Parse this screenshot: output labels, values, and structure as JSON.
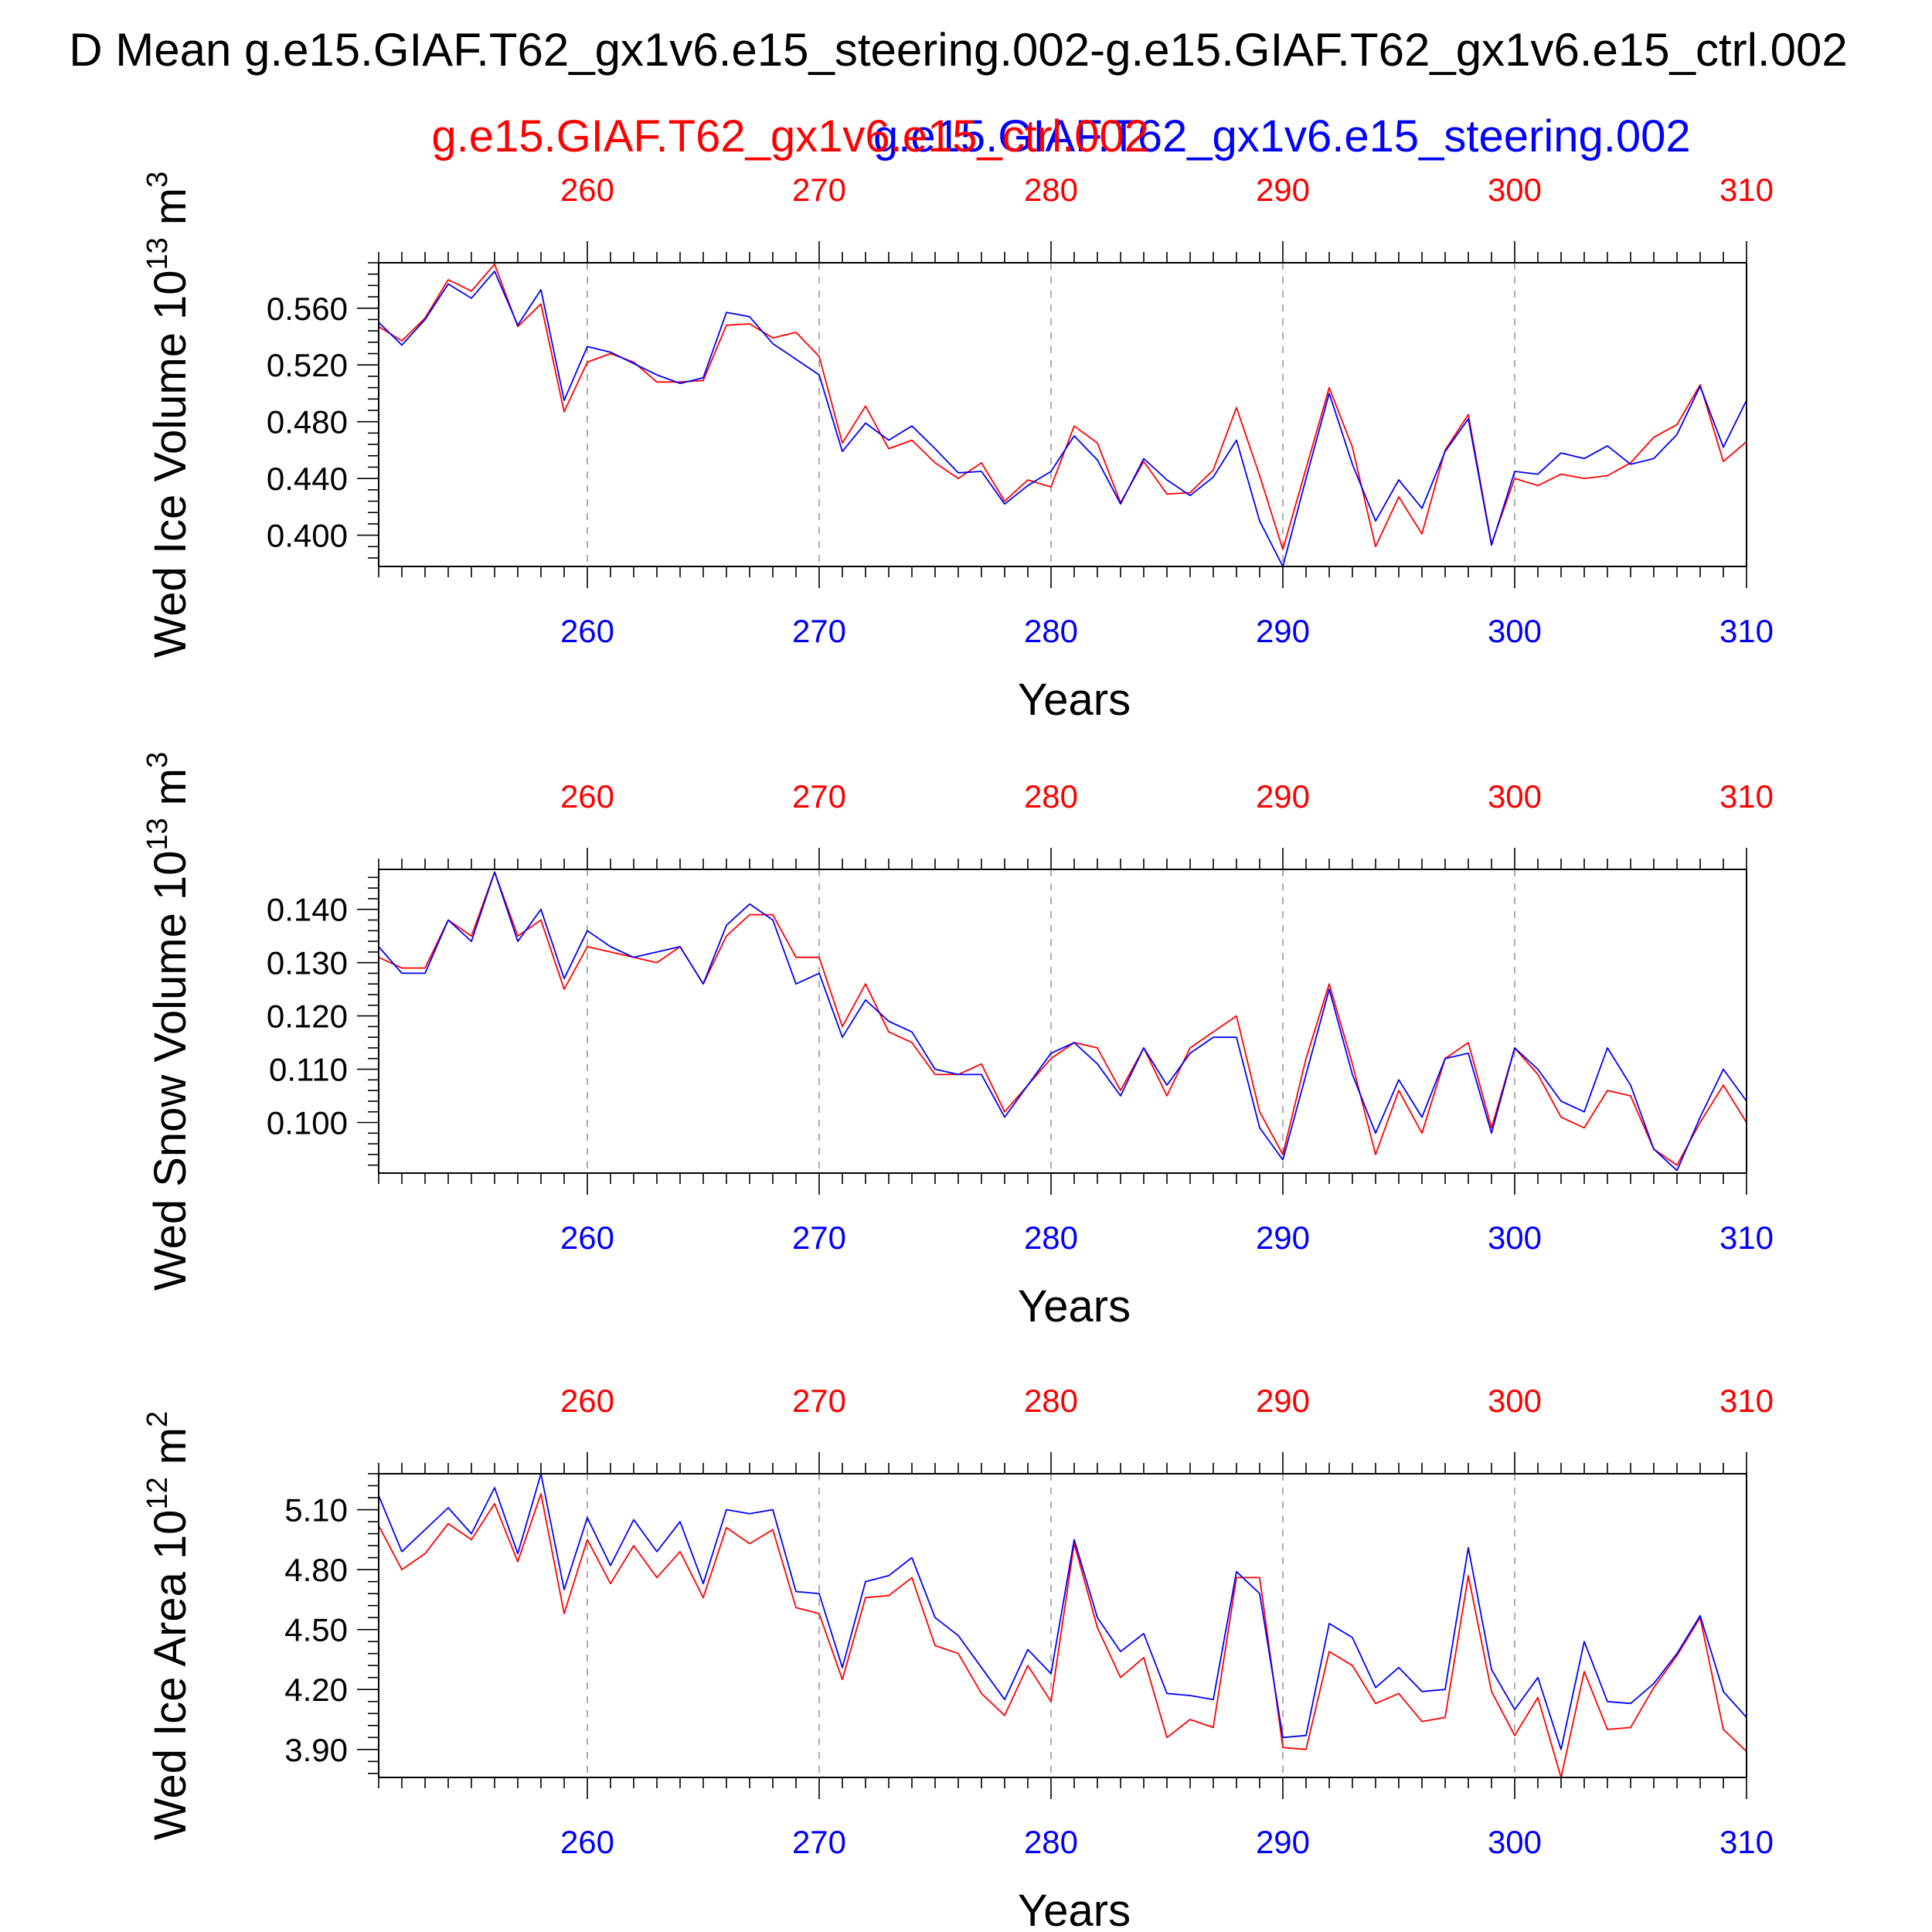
{
  "title": "D Mean g.e15.GIAF.T62_gx1v6.e15_steering.002-g.e15.GIAF.T62_gx1v6.e15_ctrl.002",
  "legend": {
    "case1": "g.e15.GIAF.T62_gx1v6.e15_ctrl.002",
    "case2": "g.e15.GIAF.T62_gx1v6.e15_steering.002"
  },
  "colors": {
    "case1": "#ff0000",
    "case2": "#0000ff",
    "axis": "#000000",
    "grid": "#999999"
  },
  "chart_data": [
    {
      "type": "line",
      "ylabel": "Wed Ice Volume",
      "yunit_base": "10",
      "yunit_exp": "13",
      "yunit_suffix": "m",
      "yunit_pow": "3",
      "xlabel": "Years",
      "xlim": [
        251,
        310
      ],
      "ylim": [
        0.378,
        0.592
      ],
      "xticks": [
        260,
        270,
        280,
        290,
        300,
        310
      ],
      "xtick_labels": [
        "260",
        "270",
        "280",
        "290",
        "300",
        "310"
      ],
      "yticks": [
        0.4,
        0.44,
        0.48,
        0.52,
        0.56
      ],
      "ytick_labels": [
        "0.400",
        "0.440",
        "0.480",
        "0.520",
        "0.560"
      ],
      "grid": "vertical dashed at major x ticks",
      "x": [
        251,
        252,
        253,
        254,
        255,
        256,
        257,
        258,
        259,
        260,
        261,
        262,
        263,
        264,
        265,
        266,
        267,
        268,
        269,
        270,
        271,
        272,
        273,
        274,
        275,
        276,
        277,
        278,
        279,
        280,
        281,
        282,
        283,
        284,
        285,
        286,
        287,
        288,
        289,
        290,
        291,
        292,
        293,
        294,
        295,
        296,
        297,
        298,
        299,
        300,
        301,
        302,
        303,
        304,
        305,
        306,
        307,
        308,
        309,
        310
      ],
      "series": [
        {
          "name": "g.e15.GIAF.T62_gx1v6.e15_ctrl.002",
          "color": "#ff0000",
          "values": [
            0.547,
            0.537,
            0.553,
            0.58,
            0.572,
            0.591,
            0.547,
            0.563,
            0.487,
            0.522,
            0.528,
            0.522,
            0.508,
            0.508,
            0.509,
            0.548,
            0.549,
            0.539,
            0.543,
            0.526,
            0.465,
            0.491,
            0.461,
            0.467,
            0.451,
            0.44,
            0.451,
            0.424,
            0.439,
            0.434,
            0.477,
            0.465,
            0.423,
            0.452,
            0.429,
            0.43,
            0.446,
            0.49,
            0.442,
            0.39,
            0.447,
            0.504,
            0.462,
            0.392,
            0.427,
            0.401,
            0.46,
            0.485,
            0.394,
            0.44,
            0.435,
            0.443,
            0.44,
            0.442,
            0.451,
            0.469,
            0.478,
            0.506,
            0.452,
            0.466
          ]
        },
        {
          "name": "g.e15.GIAF.T62_gx1v6.e15_steering.002",
          "color": "#0000ff",
          "values": [
            0.55,
            0.534,
            0.552,
            0.577,
            0.567,
            0.586,
            0.548,
            0.573,
            0.495,
            0.533,
            0.529,
            0.521,
            0.513,
            0.507,
            0.511,
            0.557,
            0.554,
            0.535,
            0.524,
            0.513,
            0.459,
            0.479,
            0.467,
            0.477,
            0.461,
            0.444,
            0.445,
            0.422,
            0.435,
            0.445,
            0.47,
            0.453,
            0.422,
            0.454,
            0.439,
            0.428,
            0.441,
            0.467,
            0.41,
            0.378,
            0.44,
            0.5,
            0.45,
            0.41,
            0.439,
            0.419,
            0.459,
            0.482,
            0.393,
            0.445,
            0.443,
            0.458,
            0.454,
            0.463,
            0.45,
            0.454,
            0.471,
            0.505,
            0.462,
            0.495
          ]
        }
      ]
    },
    {
      "type": "line",
      "ylabel": "Wed Snow Volume",
      "yunit_base": "10",
      "yunit_exp": "13",
      "yunit_suffix": "m",
      "yunit_pow": "3",
      "xlabel": "Years",
      "xlim": [
        251,
        310
      ],
      "ylim": [
        0.0905,
        0.1475
      ],
      "xticks": [
        260,
        270,
        280,
        290,
        300,
        310
      ],
      "xtick_labels": [
        "260",
        "270",
        "280",
        "290",
        "300",
        "310"
      ],
      "yticks": [
        0.1,
        0.11,
        0.12,
        0.13,
        0.14
      ],
      "ytick_labels": [
        "0.100",
        "0.110",
        "0.120",
        "0.130",
        "0.140"
      ],
      "grid": "vertical dashed at major x ticks",
      "x": [
        251,
        252,
        253,
        254,
        255,
        256,
        257,
        258,
        259,
        260,
        261,
        262,
        263,
        264,
        265,
        266,
        267,
        268,
        269,
        270,
        271,
        272,
        273,
        274,
        275,
        276,
        277,
        278,
        279,
        280,
        281,
        282,
        283,
        284,
        285,
        286,
        287,
        288,
        289,
        290,
        291,
        292,
        293,
        294,
        295,
        296,
        297,
        298,
        299,
        300,
        301,
        302,
        303,
        304,
        305,
        306,
        307,
        308,
        309,
        310
      ],
      "series": [
        {
          "name": "g.e15.GIAF.T62_gx1v6.e15_ctrl.002",
          "color": "#ff0000",
          "values": [
            0.131,
            0.129,
            0.129,
            0.138,
            0.135,
            0.147,
            0.135,
            0.138,
            0.125,
            0.133,
            0.132,
            0.131,
            0.13,
            0.133,
            0.126,
            0.135,
            0.139,
            0.139,
            0.131,
            0.131,
            0.118,
            0.126,
            0.117,
            0.115,
            0.109,
            0.109,
            0.111,
            0.102,
            0.107,
            0.112,
            0.115,
            0.114,
            0.106,
            0.114,
            0.105,
            0.114,
            0.117,
            0.12,
            0.102,
            0.094,
            0.112,
            0.126,
            0.111,
            0.094,
            0.106,
            0.098,
            0.112,
            0.115,
            0.099,
            0.114,
            0.109,
            0.101,
            0.099,
            0.106,
            0.105,
            0.095,
            0.092,
            0.1,
            0.107,
            0.1
          ]
        },
        {
          "name": "g.e15.GIAF.T62_gx1v6.e15_steering.002",
          "color": "#0000ff",
          "values": [
            0.133,
            0.128,
            0.128,
            0.138,
            0.134,
            0.147,
            0.134,
            0.14,
            0.127,
            0.136,
            0.133,
            0.131,
            0.132,
            0.133,
            0.126,
            0.137,
            0.141,
            0.138,
            0.126,
            0.128,
            0.116,
            0.123,
            0.119,
            0.117,
            0.11,
            0.109,
            0.109,
            0.101,
            0.107,
            0.113,
            0.115,
            0.111,
            0.105,
            0.114,
            0.107,
            0.113,
            0.116,
            0.116,
            0.099,
            0.093,
            0.109,
            0.125,
            0.109,
            0.098,
            0.108,
            0.101,
            0.112,
            0.113,
            0.098,
            0.114,
            0.11,
            0.104,
            0.102,
            0.114,
            0.107,
            0.095,
            0.091,
            0.101,
            0.11,
            0.104
          ]
        }
      ]
    },
    {
      "type": "line",
      "ylabel": "Wed Ice Area",
      "yunit_base": "10",
      "yunit_exp": "12",
      "yunit_suffix": "m",
      "yunit_pow": "2",
      "xlabel": "Years",
      "xlim": [
        251,
        310
      ],
      "ylim": [
        3.76,
        5.28
      ],
      "xticks": [
        260,
        270,
        280,
        290,
        300,
        310
      ],
      "xtick_labels": [
        "260",
        "270",
        "280",
        "290",
        "300",
        "310"
      ],
      "yticks": [
        3.9,
        4.2,
        4.5,
        4.8,
        5.1
      ],
      "ytick_labels": [
        "3.90",
        "4.20",
        "4.50",
        "4.80",
        "5.10"
      ],
      "grid": "vertical dashed at major x ticks",
      "x": [
        251,
        252,
        253,
        254,
        255,
        256,
        257,
        258,
        259,
        260,
        261,
        262,
        263,
        264,
        265,
        266,
        267,
        268,
        269,
        270,
        271,
        272,
        273,
        274,
        275,
        276,
        277,
        278,
        279,
        280,
        281,
        282,
        283,
        284,
        285,
        286,
        287,
        288,
        289,
        290,
        291,
        292,
        293,
        294,
        295,
        296,
        297,
        298,
        299,
        300,
        301,
        302,
        303,
        304,
        305,
        306,
        307,
        308,
        309,
        310
      ],
      "series": [
        {
          "name": "g.e15.GIAF.T62_gx1v6.e15_ctrl.002",
          "color": "#ff0000",
          "values": [
            5.02,
            4.8,
            4.88,
            5.03,
            4.95,
            5.13,
            4.84,
            5.18,
            4.58,
            4.95,
            4.73,
            4.92,
            4.76,
            4.89,
            4.66,
            5.01,
            4.93,
            5.0,
            4.61,
            4.58,
            4.25,
            4.66,
            4.67,
            4.76,
            4.42,
            4.38,
            4.18,
            4.07,
            4.32,
            4.14,
            4.93,
            4.51,
            4.26,
            4.36,
            3.96,
            4.05,
            4.01,
            4.76,
            4.76,
            3.91,
            3.9,
            4.39,
            4.32,
            4.13,
            4.18,
            4.04,
            4.06,
            4.77,
            4.19,
            3.97,
            4.16,
            3.76,
            4.29,
            4.0,
            4.01,
            4.21,
            4.37,
            4.56,
            4.0,
            3.89
          ]
        },
        {
          "name": "g.e15.GIAF.T62_gx1v6.e15_steering.002",
          "color": "#0000ff",
          "values": [
            5.17,
            4.89,
            5.0,
            5.11,
            4.98,
            5.21,
            4.88,
            5.28,
            4.7,
            5.06,
            4.82,
            5.05,
            4.89,
            5.04,
            4.73,
            5.1,
            5.08,
            5.1,
            4.69,
            4.68,
            4.31,
            4.74,
            4.77,
            4.86,
            4.56,
            4.47,
            4.31,
            4.15,
            4.4,
            4.28,
            4.95,
            4.56,
            4.39,
            4.48,
            4.18,
            4.17,
            4.15,
            4.79,
            4.68,
            3.96,
            3.97,
            4.53,
            4.46,
            4.21,
            4.31,
            4.19,
            4.2,
            4.91,
            4.3,
            4.1,
            4.26,
            3.9,
            4.44,
            4.14,
            4.13,
            4.23,
            4.38,
            4.57,
            4.19,
            4.06
          ]
        }
      ]
    }
  ]
}
